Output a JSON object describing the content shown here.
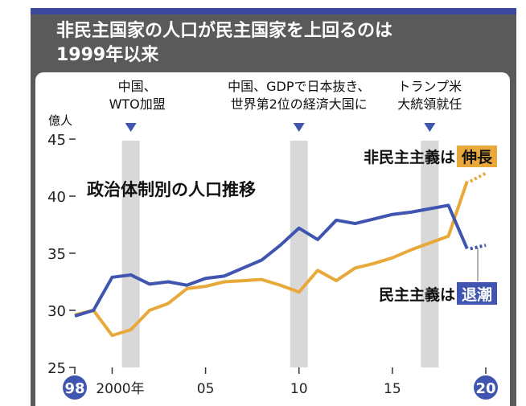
{
  "header": {
    "title_line1": "非民主国家の人口が民主国家を上回るのは",
    "title_line2": "1999年以来"
  },
  "chart_data": {
    "type": "line",
    "title": "政治体制別の人口推移",
    "ylabel": "億人",
    "ylim": [
      25,
      45
    ],
    "yticks": [
      25,
      30,
      35,
      40,
      45
    ],
    "xlim": [
      1998,
      2020
    ],
    "xticks": [
      {
        "x": 1998,
        "label": "98"
      },
      {
        "x": 2000,
        "label": "2000年"
      },
      {
        "x": 2005,
        "label": "05"
      },
      {
        "x": 2010,
        "label": "10"
      },
      {
        "x": 2015,
        "label": "15"
      },
      {
        "x": 2020,
        "label": "20"
      }
    ],
    "x": [
      1998,
      1999,
      2000,
      2001,
      2002,
      2003,
      2004,
      2005,
      2006,
      2007,
      2008,
      2009,
      2010,
      2011,
      2012,
      2013,
      2014,
      2015,
      2016,
      2017,
      2018,
      2019
    ],
    "series": [
      {
        "name": "非民主主義",
        "color": "#e8a93a",
        "values": [
          29.6,
          30,
          27.8,
          28.3,
          30,
          30.6,
          31.9,
          32.1,
          32.5,
          32.6,
          32.7,
          32.2,
          31.6,
          33.5,
          32.6,
          33.7,
          34.1,
          34.6,
          35.3,
          35.9,
          36.5,
          41.3
        ],
        "projection": [
          2020,
          42.0
        ],
        "label_prefix": "非民主主義は",
        "label_badge": "伸長"
      },
      {
        "name": "民主主義",
        "color": "#3f55b0",
        "values": [
          29.5,
          30,
          32.9,
          33.1,
          32.3,
          32.5,
          32.2,
          32.8,
          33,
          33.7,
          34.4,
          35.7,
          37.2,
          36.2,
          37.9,
          37.6,
          38,
          38.4,
          38.6,
          38.9,
          39.2,
          35.4
        ],
        "projection": [
          2020,
          35.7
        ],
        "label_prefix": "民主主義は",
        "label_badge": "退潮"
      }
    ],
    "events": [
      {
        "x": 2001,
        "lines": [
          "中国、",
          "WTO加盟"
        ]
      },
      {
        "x": 2010,
        "lines": [
          "中国、GDPで日本抜き、",
          "世界第2位の経済大国に"
        ]
      },
      {
        "x": 2017,
        "lines": [
          "トランプ米",
          "大統領就任"
        ]
      }
    ]
  }
}
